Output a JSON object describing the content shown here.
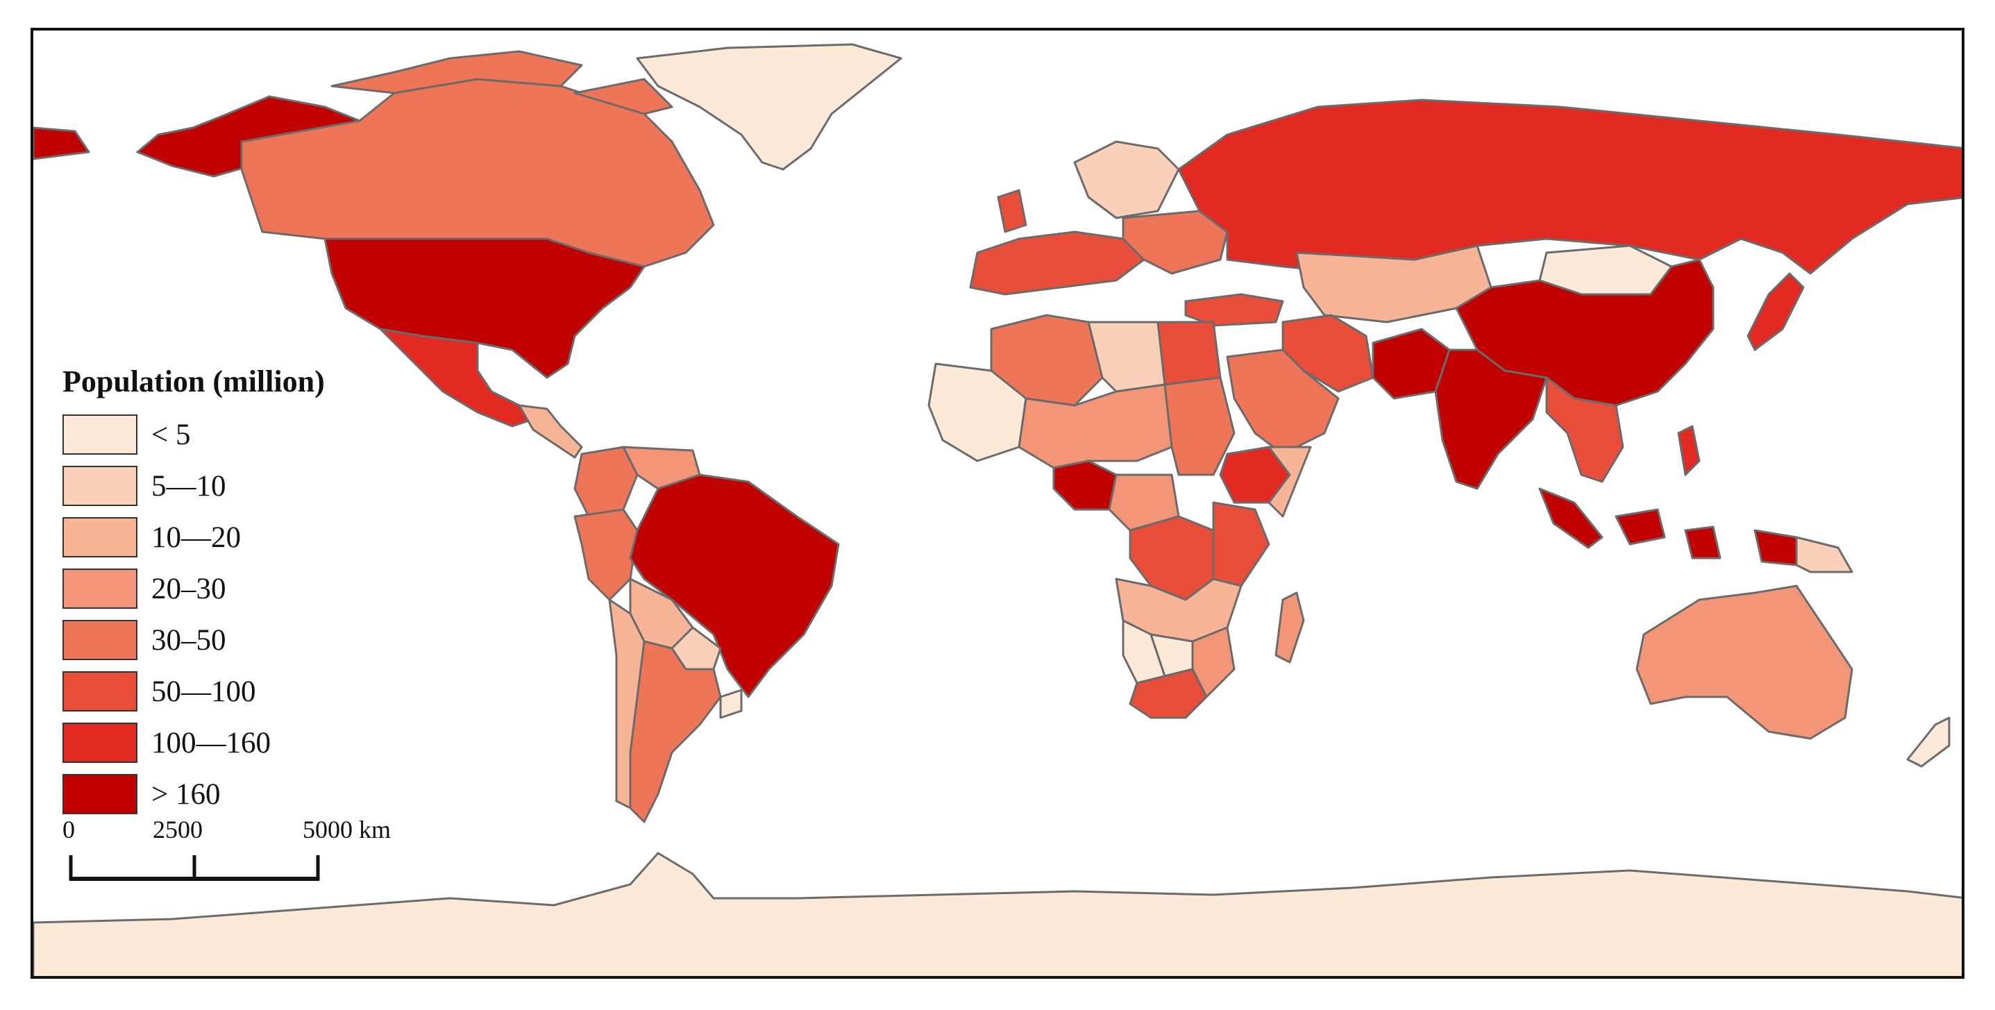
{
  "legend": {
    "title": "Population (million)",
    "classes": [
      {
        "label": "< 5",
        "color": "#fde9d8"
      },
      {
        "label": "5—10",
        "color": "#fbd0b8"
      },
      {
        "label": "10—20",
        "color": "#f8b497"
      },
      {
        "label": "20–30",
        "color": "#f39677"
      },
      {
        "label": "30–50",
        "color": "#ee7558"
      },
      {
        "label": "50—100",
        "color": "#e84e3a"
      },
      {
        "label": "100—160",
        "color": "#e22a22"
      },
      {
        "label": "> 160",
        "color": "#c10000"
      }
    ]
  },
  "scale_bar": {
    "labels": [
      "0",
      "2500",
      "5000 km"
    ]
  },
  "countries": [
    {
      "name": "United States",
      "class": "> 160"
    },
    {
      "name": "Canada",
      "class": "30–50"
    },
    {
      "name": "Alaska",
      "class": "> 160"
    },
    {
      "name": "Greenland",
      "class": "< 5"
    },
    {
      "name": "Mexico",
      "class": "100—160"
    },
    {
      "name": "Brazil",
      "class": "> 160"
    },
    {
      "name": "Argentina",
      "class": "30–50"
    },
    {
      "name": "Chile",
      "class": "10—20"
    },
    {
      "name": "Peru",
      "class": "30–50"
    },
    {
      "name": "Colombia",
      "class": "30–50"
    },
    {
      "name": "Venezuela",
      "class": "20–30"
    },
    {
      "name": "Bolivia",
      "class": "10—20"
    },
    {
      "name": "Paraguay",
      "class": "5—10"
    },
    {
      "name": "Uruguay",
      "class": "< 5"
    },
    {
      "name": "Russia",
      "class": "100—160"
    },
    {
      "name": "China",
      "class": "> 160"
    },
    {
      "name": "India",
      "class": "> 160"
    },
    {
      "name": "Pakistan",
      "class": "> 160"
    },
    {
      "name": "Mongolia",
      "class": "< 5"
    },
    {
      "name": "Kazakhstan",
      "class": "10—20"
    },
    {
      "name": "Iran",
      "class": "50—100"
    },
    {
      "name": "Saudi Arabia",
      "class": "30–50"
    },
    {
      "name": "Turkey",
      "class": "50—100"
    },
    {
      "name": "Japan",
      "class": "100—160"
    },
    {
      "name": "Indonesia",
      "class": "> 160"
    },
    {
      "name": "Australia",
      "class": "20–30"
    },
    {
      "name": "Nigeria",
      "class": "> 160"
    },
    {
      "name": "Ethiopia",
      "class": "100—160"
    },
    {
      "name": "Egypt",
      "class": "50—100"
    },
    {
      "name": "Algeria",
      "class": "30–50"
    },
    {
      "name": "Libya",
      "class": "5—10"
    },
    {
      "name": "Sudan",
      "class": "30–50"
    },
    {
      "name": "DR Congo",
      "class": "50—100"
    },
    {
      "name": "South Africa",
      "class": "50—100"
    },
    {
      "name": "Namibia",
      "class": "< 5"
    },
    {
      "name": "Madagascar",
      "class": "20–30"
    },
    {
      "name": "Antarctica",
      "class": "< 5"
    }
  ]
}
